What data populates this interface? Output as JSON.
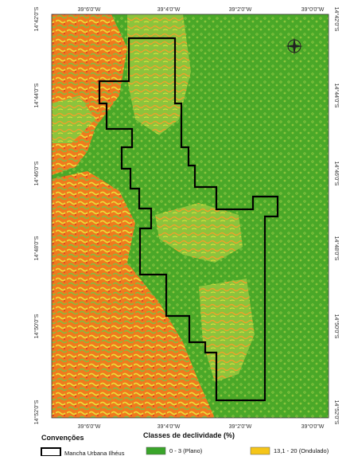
{
  "map": {
    "top_labels": [
      "39°6'0\"W",
      "39°4'0\"W",
      "39°2'0\"W",
      "39°0'0\"W"
    ],
    "bottom_labels": [
      "39°6'0\"W",
      "39°4'0\"W",
      "39°2'0\"W",
      "39°0'0\"W"
    ],
    "left_labels": [
      "14°42'0\"S",
      "14°44'0\"S",
      "14°46'0\"S",
      "14°48'0\"S",
      "14°50'0\"S",
      "14°52'0\"S"
    ],
    "right_labels": [
      "14°42'0\"S",
      "14°44'0\"S",
      "14°46'0\"S",
      "14°48'0\"S",
      "14°50'0\"S",
      "14°52'0\"S"
    ]
  },
  "legend": {
    "conventions_title": "Convenções",
    "conventions_items": [
      "Mancha Urbana Ilhéus"
    ],
    "classes_title": "Classes de declividade (%)",
    "classes_items": [
      "0 - 3 (Plano)",
      "13,1 - 20 (Ondulado)"
    ]
  }
}
